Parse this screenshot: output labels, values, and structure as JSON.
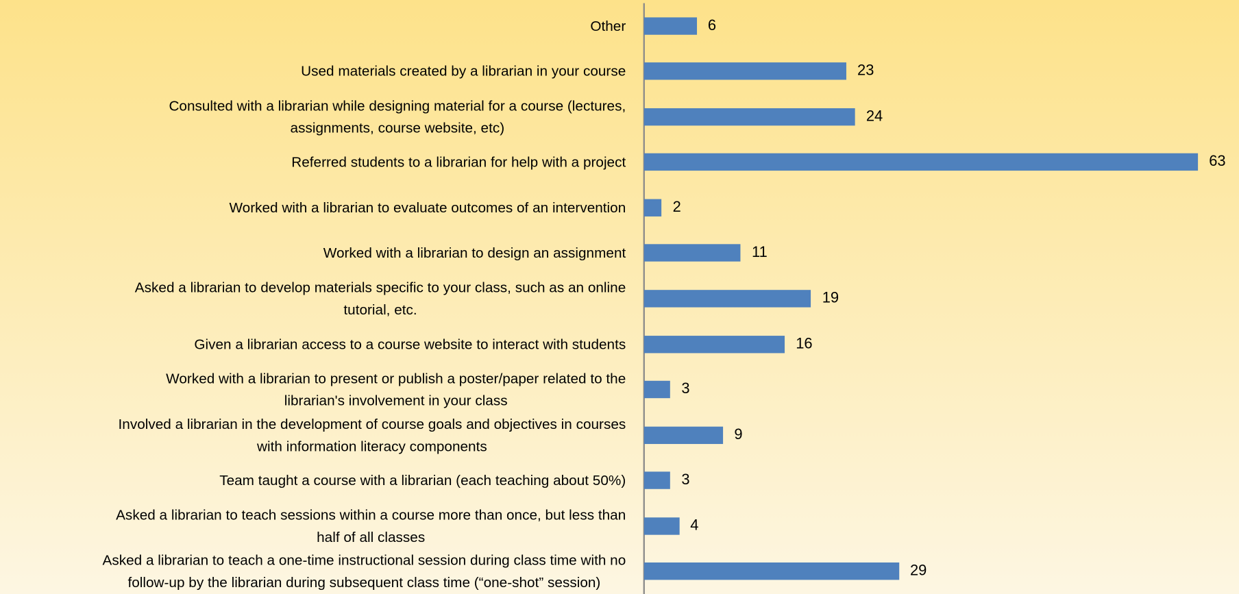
{
  "chart_data": {
    "type": "bar",
    "orientation": "horizontal",
    "color": "#4f81bd",
    "categories": [
      "Other",
      "Used materials created by a librarian in your course",
      "Consulted with a librarian while designing material for a course (lectures,\nassignments, course website, etc)",
      "Referred students to a librarian for help with a project",
      "Worked with a librarian to evaluate outcomes of an intervention",
      "Worked with a librarian to design an assignment",
      "Asked a librarian to develop materials specific to your class, such as an online\ntutorial, etc.",
      "Given a librarian access to a course website to interact with students",
      "Worked with a librarian to present or publish a poster/paper related to the\nlibrarian's involvement in your class",
      "Involved a librarian in the development of course goals and objectives in courses\nwith information literacy components",
      "Team taught a course with a librarian (each teaching about 50%)",
      "Asked a librarian to teach sessions within a course more than once, but less than\nhalf of all classes",
      "Asked a librarian to teach a one-time instructional session during class time with no\nfollow-up by the librarian during subsequent class time (“one-shot” session)"
    ],
    "values": [
      6,
      23,
      24,
      63,
      2,
      11,
      19,
      16,
      3,
      9,
      3,
      4,
      29
    ]
  }
}
